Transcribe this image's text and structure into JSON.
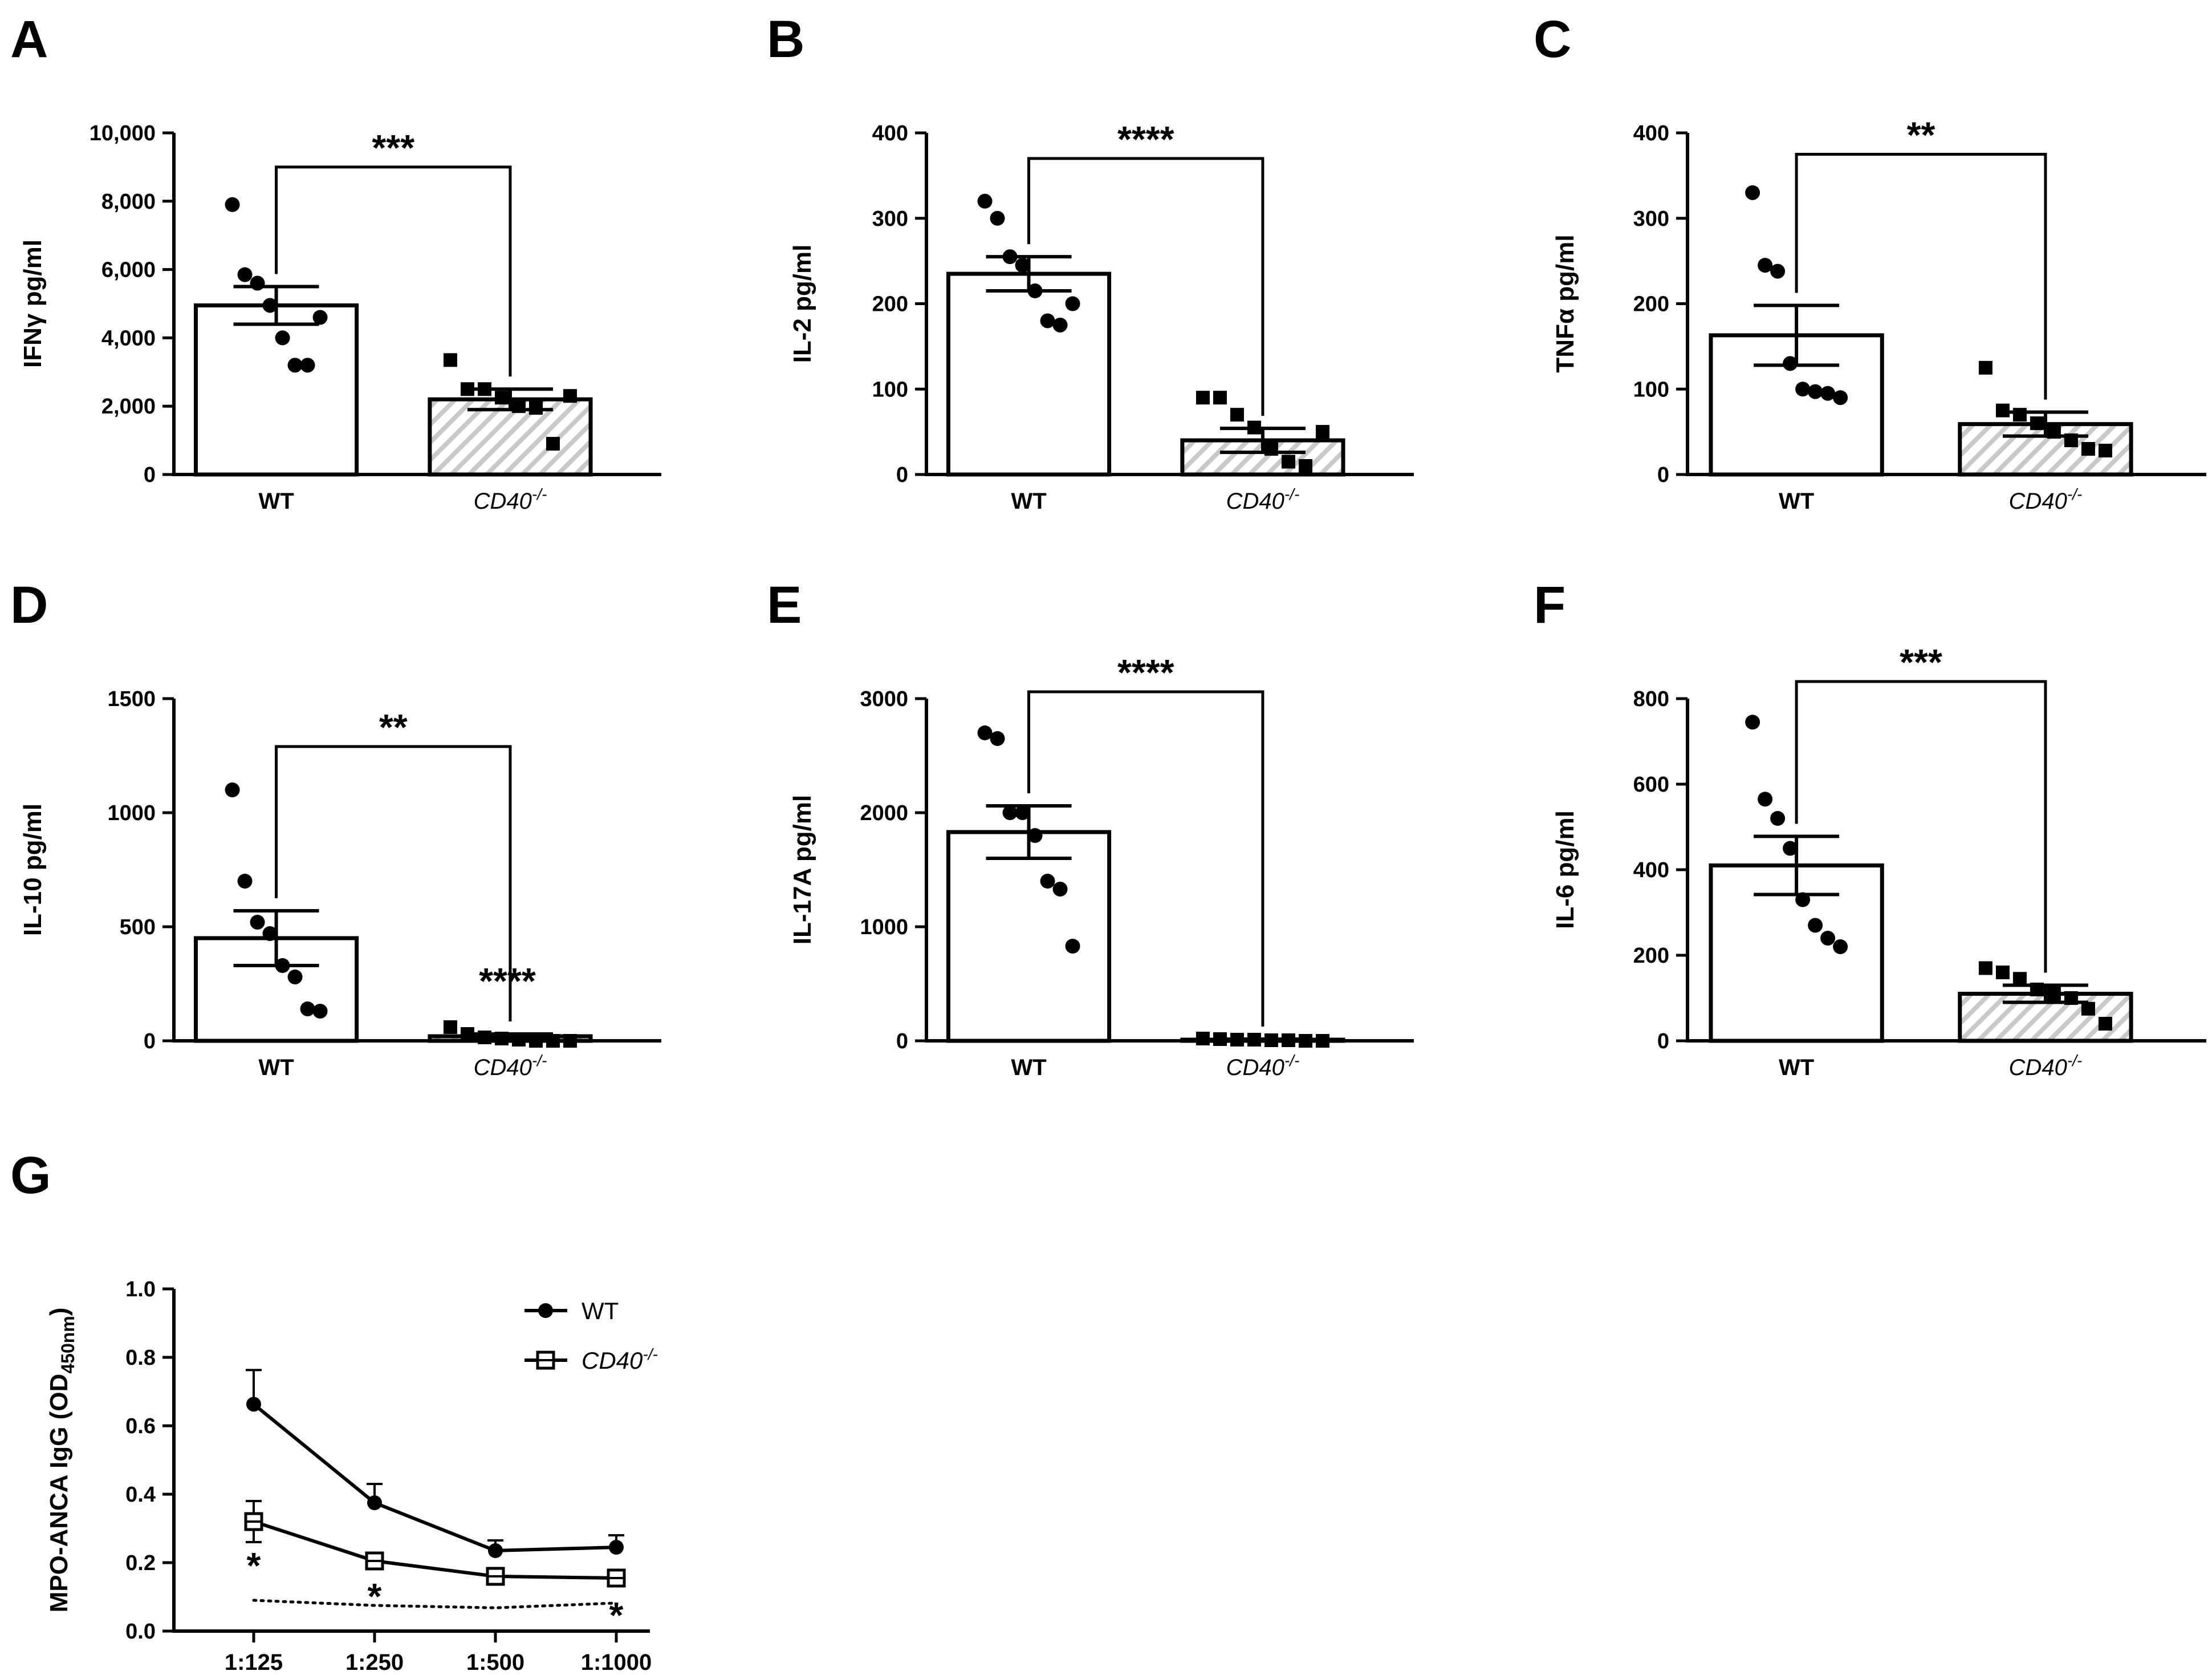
{
  "chart_data": [
    {
      "panel": "A",
      "type": "bar",
      "ylabel": "IFNγ pg/ml",
      "ylim": [
        0,
        10000
      ],
      "yticks": [
        "0",
        "2,000",
        "4,000",
        "6,000",
        "8,000",
        "10,000"
      ],
      "ytick_values": [
        0,
        2000,
        4000,
        6000,
        8000,
        10000
      ],
      "categories": [
        {
          "text": "WT",
          "sup": "",
          "italic": false
        },
        {
          "text": "CD40",
          "sup": "-/-",
          "italic": true
        }
      ],
      "means": [
        4950,
        2200
      ],
      "sem": [
        550,
        300
      ],
      "points": [
        [
          7900,
          5850,
          5600,
          4950,
          4000,
          3200,
          3200,
          4600
        ],
        [
          3350,
          2500,
          2500,
          2250,
          2000,
          1950,
          900,
          2300
        ]
      ],
      "significance": "***",
      "sig_bracket_y": 9000,
      "extra_sig": ""
    },
    {
      "panel": "B",
      "type": "bar",
      "ylabel": "IL-2 pg/ml",
      "ylim": [
        0,
        400
      ],
      "yticks": [
        "0",
        "100",
        "200",
        "300",
        "400"
      ],
      "ytick_values": [
        0,
        100,
        200,
        300,
        400
      ],
      "categories": [
        {
          "text": "WT",
          "sup": "",
          "italic": false
        },
        {
          "text": "CD40",
          "sup": "-/-",
          "italic": true
        }
      ],
      "means": [
        235,
        40
      ],
      "sem": [
        20,
        14
      ],
      "points": [
        [
          320,
          300,
          255,
          245,
          215,
          180,
          175,
          200
        ],
        [
          90,
          90,
          70,
          55,
          30,
          15,
          10,
          50
        ]
      ],
      "significance": "****",
      "sig_bracket_y": 370,
      "extra_sig": ""
    },
    {
      "panel": "C",
      "type": "bar",
      "ylabel": "TNFα pg/ml",
      "ylim": [
        0,
        400
      ],
      "yticks": [
        "0",
        "100",
        "200",
        "300",
        "400"
      ],
      "ytick_values": [
        0,
        100,
        200,
        300,
        400
      ],
      "categories": [
        {
          "text": "WT",
          "sup": "",
          "italic": false
        },
        {
          "text": "CD40",
          "sup": "-/-",
          "italic": true
        }
      ],
      "means": [
        163,
        59
      ],
      "sem": [
        35,
        14
      ],
      "points": [
        [
          330,
          245,
          238,
          130,
          100,
          97,
          95,
          90
        ],
        [
          125,
          75,
          70,
          60,
          50,
          40,
          30,
          28
        ]
      ],
      "significance": "**",
      "sig_bracket_y": 375,
      "extra_sig": ""
    },
    {
      "panel": "D",
      "type": "bar",
      "ylabel": "IL-10 pg/ml",
      "ylim": [
        0,
        1500
      ],
      "yticks": [
        "0",
        "500",
        "1000",
        "1500"
      ],
      "ytick_values": [
        0,
        500,
        1000,
        1500
      ],
      "categories": [
        {
          "text": "WT",
          "sup": "",
          "italic": false
        },
        {
          "text": "CD40",
          "sup": "-/-",
          "italic": true
        }
      ],
      "means": [
        450,
        20
      ],
      "sem": [
        120,
        10
      ],
      "points": [
        [
          1100,
          700,
          520,
          470,
          330,
          280,
          140,
          130
        ],
        [
          60,
          30,
          15,
          10,
          5,
          0,
          0,
          0
        ]
      ],
      "significance": "**",
      "sig_bracket_y": 1290,
      "extra_sig": "****"
    },
    {
      "panel": "E",
      "type": "bar",
      "ylabel": "IL-17A pg/ml",
      "ylim": [
        0,
        3000
      ],
      "yticks": [
        "0",
        "1000",
        "2000",
        "3000"
      ],
      "ytick_values": [
        0,
        1000,
        2000,
        3000
      ],
      "categories": [
        {
          "text": "WT",
          "sup": "",
          "italic": false
        },
        {
          "text": "CD40",
          "sup": "-/-",
          "italic": true
        }
      ],
      "means": [
        1830,
        10
      ],
      "sem": [
        230,
        5
      ],
      "points": [
        [
          2700,
          2650,
          2000,
          2000,
          1800,
          1400,
          1330,
          830
        ],
        [
          20,
          15,
          10,
          10,
          5,
          5,
          0,
          0
        ]
      ],
      "significance": "****",
      "sig_bracket_y": 3060,
      "extra_sig": ""
    },
    {
      "panel": "F",
      "type": "bar",
      "ylabel": "IL-6 pg/ml",
      "ylim": [
        0,
        800
      ],
      "yticks": [
        "0",
        "200",
        "400",
        "600",
        "800"
      ],
      "ytick_values": [
        0,
        200,
        400,
        600,
        800
      ],
      "categories": [
        {
          "text": "WT",
          "sup": "",
          "italic": false
        },
        {
          "text": "CD40",
          "sup": "-/-",
          "italic": true
        }
      ],
      "means": [
        410,
        110
      ],
      "sem": [
        68,
        20
      ],
      "points": [
        [
          745,
          565,
          520,
          450,
          330,
          270,
          240,
          220
        ],
        [
          170,
          160,
          145,
          120,
          110,
          100,
          75,
          40
        ]
      ],
      "significance": "***",
      "sig_bracket_y": 840,
      "extra_sig": ""
    },
    {
      "panel": "G",
      "type": "line",
      "ylabel_main": "MPO-ANCA IgG (OD",
      "ylabel_sub": "450nm",
      "ylabel_close": ")",
      "ylim": [
        0,
        1.0
      ],
      "yticks": [
        "0.0",
        "0.2",
        "0.4",
        "0.6",
        "0.8",
        "1.0"
      ],
      "ytick_values": [
        0,
        0.2,
        0.4,
        0.6,
        0.8,
        1.0
      ],
      "categories": [
        "1:125",
        "1:250",
        "1:500",
        "1:1000"
      ],
      "series": [
        {
          "name": "WT",
          "sup": "",
          "italic": false,
          "marker": "circle",
          "values": [
            0.663,
            0.375,
            0.235,
            0.245
          ],
          "err": [
            0.1,
            0.055,
            0.03,
            0.035
          ]
        },
        {
          "name": "CD40",
          "sup": "-/-",
          "italic": true,
          "marker": "square-open",
          "values": [
            0.32,
            0.205,
            0.16,
            0.155
          ],
          "err": [
            0.06,
            0.02,
            0.015,
            0.012
          ]
        }
      ],
      "baseline": [
        0.09,
        0.075,
        0.068,
        0.082
      ],
      "stars": [
        "*",
        "*",
        "",
        "*"
      ],
      "star_values": [
        0.205,
        0.115,
        0,
        0.06
      ]
    }
  ]
}
